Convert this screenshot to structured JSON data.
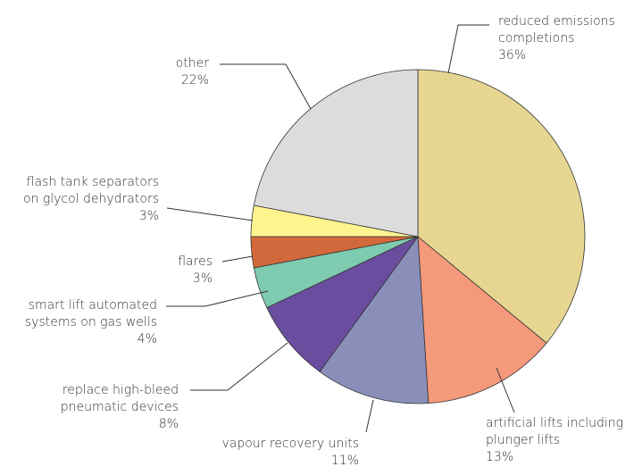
{
  "chart_data": {
    "type": "pie",
    "categories": [
      "reduced emissions\ncompletions",
      "artificial lifts including\nplunger lifts",
      "vapour recovery units",
      "replace high-bleed\npneumatic devices",
      "smart lift automated\nsystems on gas wells",
      "flares",
      "flash tank separators\non glycol dehydrators",
      "other"
    ],
    "values": [
      36,
      13,
      11,
      8,
      4,
      3,
      3,
      22
    ],
    "value_labels": [
      "36%",
      "13%",
      "11%",
      "8%",
      "4%",
      "3%",
      "3%",
      "22%"
    ],
    "colors": [
      "#e6d692",
      "#f4997a",
      "#8a8fba",
      "#6a4d9f",
      "#7fcbb0",
      "#d2693c",
      "#fdf48e",
      "#dcdcdc"
    ]
  }
}
